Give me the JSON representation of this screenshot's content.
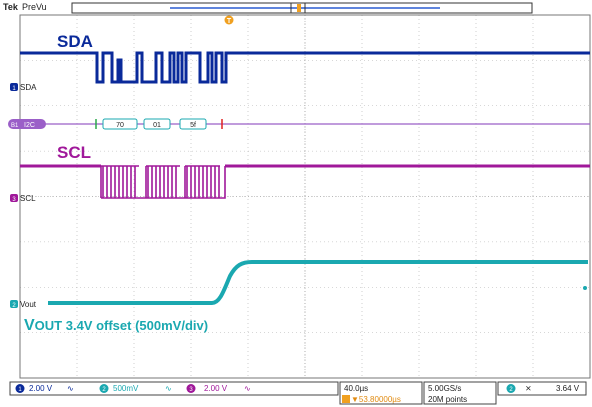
{
  "header": {
    "brand": "Tek",
    "mode": "PreVu",
    "trigger_marker": "T"
  },
  "colors": {
    "ch1": "#0a2a9a",
    "ch2": "#1aa8b0",
    "ch3": "#a0189a",
    "bus": "#9b5fc8",
    "grid": "#9a9a9a",
    "bus_box": "#1aa8b0"
  },
  "channels": {
    "sda": {
      "marker": "1",
      "name": "SDA",
      "title": "SDA"
    },
    "bus": {
      "marker": "B1",
      "name": "I2C",
      "packets": [
        "70",
        "01",
        "5f"
      ]
    },
    "scl": {
      "marker": "3",
      "name": "SCL",
      "title": "SCL"
    },
    "vout": {
      "marker": "2",
      "name": "Vout",
      "title_big": "V",
      "title_rest": "OUT 3.4V offset (500mV/div)"
    }
  },
  "footer": {
    "ch1": {
      "num": "1",
      "scale": "2.00 V",
      "bw": "∿"
    },
    "ch2": {
      "num": "2",
      "scale": "500mV",
      "bw": "∿"
    },
    "ch3": {
      "num": "3",
      "scale": "2.00 V",
      "bw": "∿"
    },
    "timebase": "40.0µs",
    "trig_position": "▼53.80000µs",
    "sample_rate": "5.00GS/s",
    "record_length": "20M points",
    "trig_channel": "2",
    "trig_slope": "⨯",
    "trig_level": "3.64 V"
  }
}
